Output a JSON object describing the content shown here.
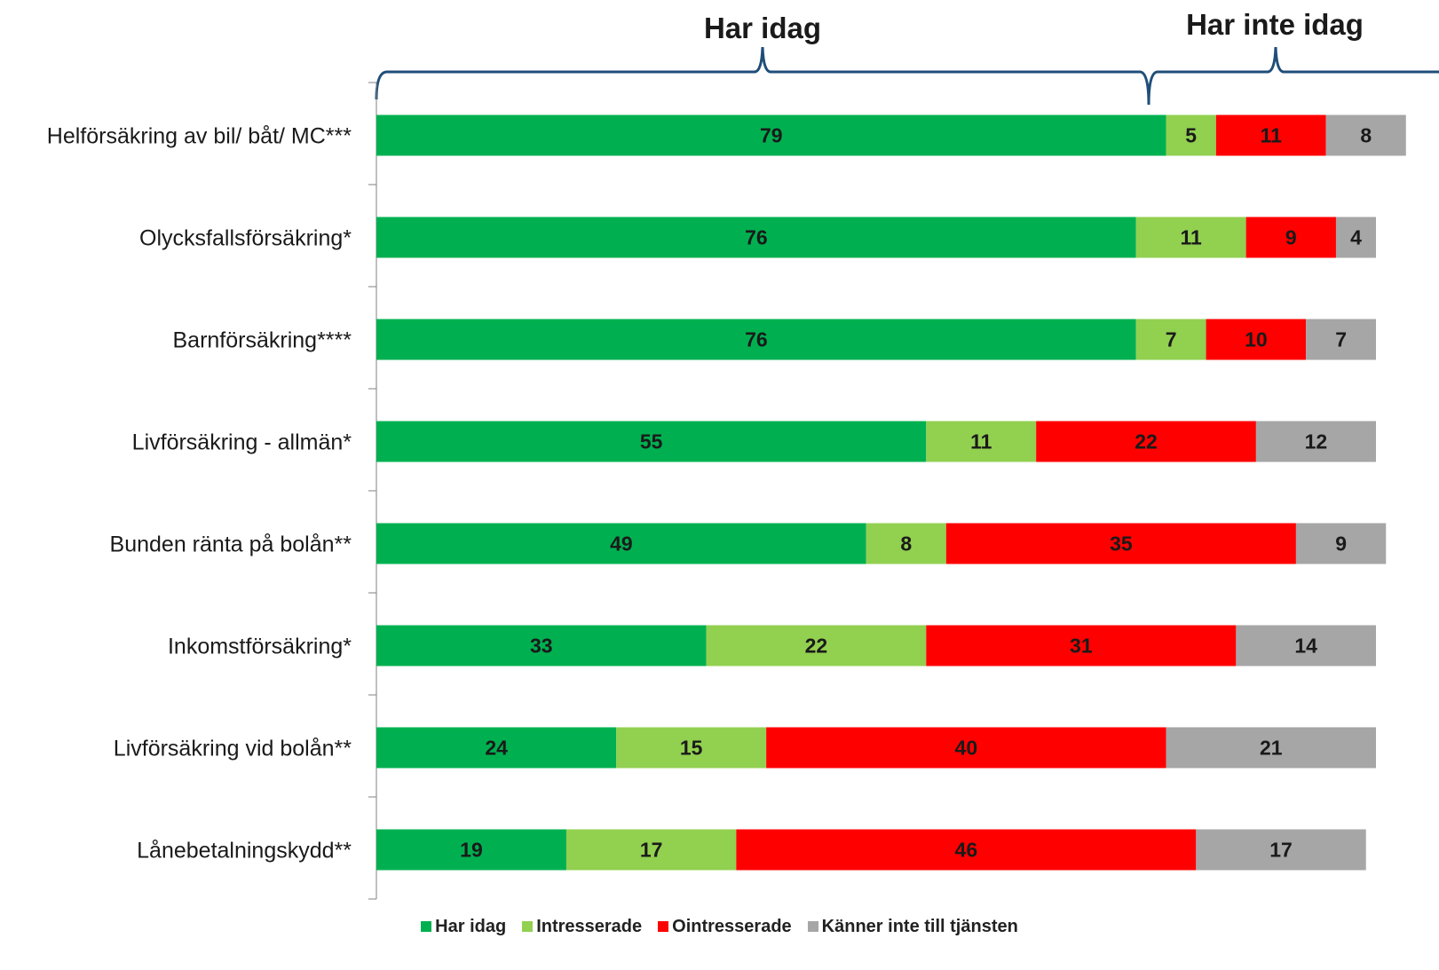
{
  "chart_data": {
    "type": "bar",
    "orientation": "horizontal",
    "stacked": true,
    "categories": [
      "Helförsäkring av bil/ båt/ MC***",
      "Olycksfallsförsäkring*",
      "Barnförsäkring****",
      "Livförsäkring - allmän*",
      "Bunden ränta på bolån**",
      "Inkomstförsäkring*",
      "Livförsäkring vid bolån**",
      "Lånebetalningskydd**"
    ],
    "series": [
      {
        "name": "Har idag",
        "color": "#00b050",
        "values": [
          79,
          76,
          76,
          55,
          49,
          33,
          24,
          19
        ]
      },
      {
        "name": "Intresserade",
        "color": "#92d050",
        "values": [
          5,
          11,
          7,
          11,
          8,
          22,
          15,
          17
        ]
      },
      {
        "name": "Ointresserade",
        "color": "#ff0000",
        "values": [
          11,
          9,
          10,
          22,
          35,
          31,
          40,
          46
        ]
      },
      {
        "name": "Känner inte till tjänsten",
        "color": "#a6a6a6",
        "values": [
          8,
          4,
          7,
          12,
          9,
          14,
          21,
          17
        ]
      }
    ],
    "group_titles": [
      "Har idag",
      "Har inte idag"
    ],
    "legend_position": "bottom",
    "grid": false
  }
}
